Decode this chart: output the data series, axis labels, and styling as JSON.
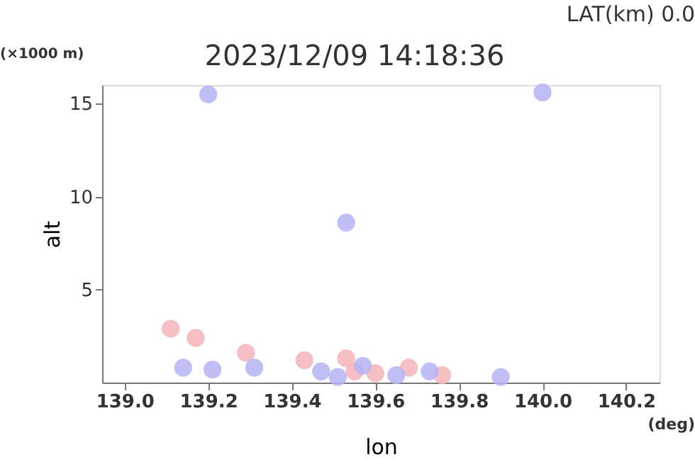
{
  "chart_data": {
    "type": "scatter",
    "title": "2023/12/09 14:18:36",
    "subtitle": "LAT(km) 0.0",
    "xlabel": "lon",
    "ylabel": "alt",
    "annotations": [
      "(×1000 m)",
      "(deg)"
    ],
    "xlim": [
      138.946,
      140.28
    ],
    "ylim": [
      0,
      16
    ],
    "xticks": [
      {
        "value": 139.0,
        "label": "139.0"
      },
      {
        "value": 139.2,
        "label": "139.2"
      },
      {
        "value": 139.4,
        "label": "139.4"
      },
      {
        "value": 139.6,
        "label": "139.6"
      },
      {
        "value": 139.8,
        "label": "139.8"
      },
      {
        "value": 140.0,
        "label": "140.0"
      },
      {
        "value": 140.2,
        "label": "140.2"
      }
    ],
    "yticks": [
      5,
      10,
      15
    ],
    "grid": false,
    "legend": false,
    "series": [
      {
        "color": "#f4b4b8",
        "x": [
          139.11,
          139.17,
          139.29,
          139.43,
          139.53,
          139.55,
          139.6,
          139.68,
          139.76
        ],
        "values": [
          2.9,
          2.4,
          1.6,
          1.2,
          1.3,
          0.6,
          0.5,
          0.8,
          0.4
        ]
      },
      {
        "color": "#b4b4f4",
        "x": [
          139.14,
          139.21,
          139.31,
          139.47,
          139.51,
          139.57,
          139.65,
          139.73,
          139.9,
          139.53,
          139.2,
          140.0
        ],
        "values": [
          0.8,
          0.7,
          0.8,
          0.6,
          0.3,
          0.9,
          0.4,
          0.6,
          0.3,
          8.6,
          15.5,
          15.6
        ]
      }
    ]
  }
}
